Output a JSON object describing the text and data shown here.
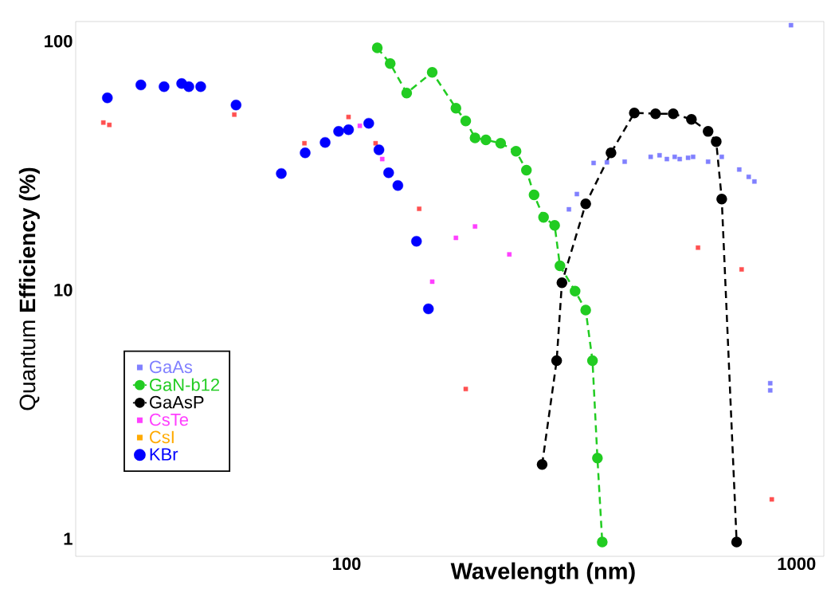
{
  "chart_data": {
    "type": "scatter",
    "xlabel": "Wavelength (nm)",
    "ylabel": "Quantum **Efficiency (%)**",
    "log": "xy",
    "legend": "bottom left",
    "xlim": [
      25,
      1150
    ],
    "ylim": [
      0.85,
      120
    ],
    "xticks": [
      100,
      1000
    ],
    "yticks": [
      1,
      10,
      100
    ],
    "series": [
      {
        "color": "#ff5050",
        "marker": "square",
        "x": [
          28.8,
          29.7,
          56.3,
          80.6,
          101,
          116,
          145,
          184,
          604,
          755,
          881
        ],
        "values": [
          47.1,
          46.1,
          50.7,
          38.9,
          49.6,
          38.9,
          21.2,
          4.0,
          14.8,
          12.1,
          1.44
        ]
      },
      {
        "name": "GaAs",
        "color": "#8080ff",
        "marker": "square",
        "x": [
          312,
          325,
          354,
          379,
          415,
          474,
          496,
          515,
          536,
          550,
          574,
          589,
          636,
          682,
          746,
          783,
          806,
          874,
          874,
          972
        ],
        "values": [
          21.1,
          24.3,
          32.4,
          32.6,
          32.8,
          34.3,
          34.8,
          33.6,
          34.3,
          33.6,
          34.0,
          34.3,
          32.8,
          34.3,
          30.5,
          28.5,
          27.3,
          4.22,
          3.95,
          116
        ]
      },
      {
        "name": "GaN-b12",
        "color": "#22cc22",
        "type": "line",
        "marker": "circle",
        "line_style": "dashed",
        "x": [
          117,
          125,
          136,
          155,
          175,
          184,
          193,
          204,
          220,
          238,
          251,
          261,
          274,
          290,
          298,
          322,
          340,
          352,
          361,
          370
        ],
        "values": [
          94,
          81.3,
          61.9,
          75.0,
          53.8,
          47.8,
          40.9,
          40.1,
          38.9,
          36.1,
          30.3,
          24.1,
          19.6,
          18.2,
          12.5,
          9.9,
          8.3,
          5.2,
          2.11,
          0.97
        ]
      },
      {
        "name": "GaAsP",
        "color": "#000000",
        "type": "line",
        "marker": "circle",
        "line_style": "dashed",
        "x": [
          272,
          293,
          301,
          340,
          387,
          436,
          486,
          532,
          584,
          636,
          663,
          682,
          736
        ],
        "values": [
          1.99,
          5.2,
          10.7,
          22.2,
          35.6,
          51.5,
          51.1,
          51.1,
          48.5,
          43.4,
          39.5,
          23.2,
          0.97
        ]
      },
      {
        "name": "CsTe",
        "color": "#ff40ff",
        "marker": "square",
        "x": [
          107,
          120,
          155,
          175,
          193,
          230
        ],
        "values": [
          45.7,
          33.6,
          10.8,
          16.2,
          18.0,
          13.9
        ]
      },
      {
        "name": "CsI",
        "color": "#ffaa00",
        "marker": "square"
      },
      {
        "name": "KBr",
        "color": "#0000ff",
        "marker": "circle",
        "x": [
          29.4,
          34.9,
          39.3,
          43.0,
          44.6,
          47.4,
          56.8,
          71.6,
          80.9,
          89.6,
          96,
          101,
          112,
          118,
          124,
          130,
          143,
          152
        ],
        "values": [
          59.2,
          66.7,
          65.7,
          67.6,
          65.7,
          65.7,
          55.4,
          29.4,
          35.6,
          39.2,
          43.4,
          44.1,
          46.8,
          36.6,
          29.6,
          26.3,
          15.7,
          8.4
        ]
      }
    ]
  }
}
